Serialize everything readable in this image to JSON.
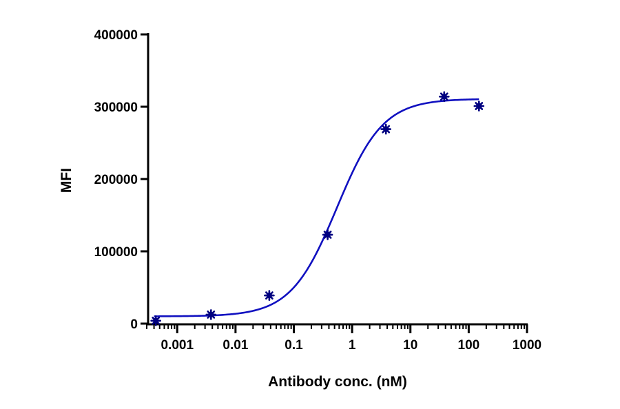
{
  "chart_data": {
    "type": "scatter",
    "title": "",
    "xlabel": "Antibody conc. (nM)",
    "ylabel": "MFI",
    "x_scale": "log",
    "xlim": [
      0.0003,
      1000
    ],
    "ylim": [
      0,
      400000
    ],
    "x_ticks": [
      0.001,
      0.01,
      0.1,
      1,
      10,
      100,
      1000
    ],
    "x_tick_labels": [
      "0.001",
      "0.01",
      "0.1",
      "1",
      "10",
      "100",
      "1000"
    ],
    "y_ticks": [
      0,
      100000,
      200000,
      300000,
      400000
    ],
    "y_tick_labels": [
      "0",
      "100000",
      "200000",
      "300000",
      "400000"
    ],
    "grid": false,
    "legend": "none",
    "series": [
      {
        "marker": "star",
        "color": "#000080",
        "x": [
          0.00043,
          0.0038,
          0.038,
          0.38,
          3.8,
          38,
          150
        ],
        "y": [
          4000,
          12500,
          39000,
          123000,
          269000,
          314000,
          301000
        ]
      }
    ],
    "fit_curve": {
      "model": "4PL",
      "color": "#1010c0",
      "x_range": [
        0.0004,
        150
      ],
      "bottom": 10000,
      "top": 311000,
      "ec50": 0.55,
      "hill": 1.1
    }
  }
}
